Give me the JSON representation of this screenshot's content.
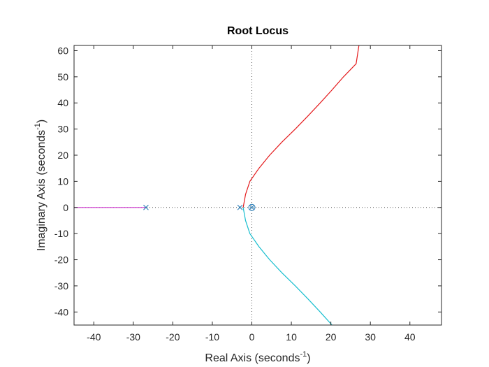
{
  "chart_data": {
    "type": "line",
    "title": "Root Locus",
    "xlabel": {
      "text": "Real Axis (seconds",
      "sup": "-1",
      "close": ")"
    },
    "ylabel": {
      "text": "Imaginary Axis (seconds",
      "sup": "-1",
      "close": ")"
    },
    "xlim": [
      -45,
      48
    ],
    "ylim": [
      -45,
      62
    ],
    "xticks": [
      -40,
      -30,
      -20,
      -10,
      0,
      10,
      20,
      30,
      40
    ],
    "yticks": [
      -40,
      -30,
      -20,
      -10,
      0,
      10,
      20,
      30,
      40,
      50,
      60
    ],
    "grid": false,
    "series": [
      {
        "color": "#e41a1c",
        "points": [
          [
            -2.2,
            0
          ],
          [
            -1.6,
            5
          ],
          [
            -0.5,
            10
          ],
          [
            1.8,
            15
          ],
          [
            4.5,
            20
          ],
          [
            7.6,
            25
          ],
          [
            11,
            30
          ],
          [
            14.2,
            35
          ],
          [
            17.3,
            40
          ],
          [
            20.3,
            45
          ],
          [
            23.2,
            50
          ],
          [
            26.4,
            55
          ],
          [
            27.1,
            62
          ]
        ]
      },
      {
        "color": "#17becf",
        "points": [
          [
            -2.2,
            0
          ],
          [
            -1.6,
            -5
          ],
          [
            -0.5,
            -10
          ],
          [
            1.8,
            -15
          ],
          [
            4.5,
            -20
          ],
          [
            7.6,
            -25
          ],
          [
            11,
            -30
          ],
          [
            14.2,
            -35
          ],
          [
            17.3,
            -40
          ],
          [
            20.3,
            -45
          ]
        ]
      },
      {
        "color": "#cc33cc",
        "points": [
          [
            -26.8,
            0
          ],
          [
            -45,
            0
          ]
        ]
      }
    ],
    "poles": [
      [
        -26.8,
        0
      ],
      [
        -3.0,
        0
      ],
      [
        0,
        0
      ]
    ],
    "zeros": [
      [
        0,
        0
      ]
    ],
    "marker_color": "#1f77b4",
    "reference_line_color": "#555555"
  }
}
